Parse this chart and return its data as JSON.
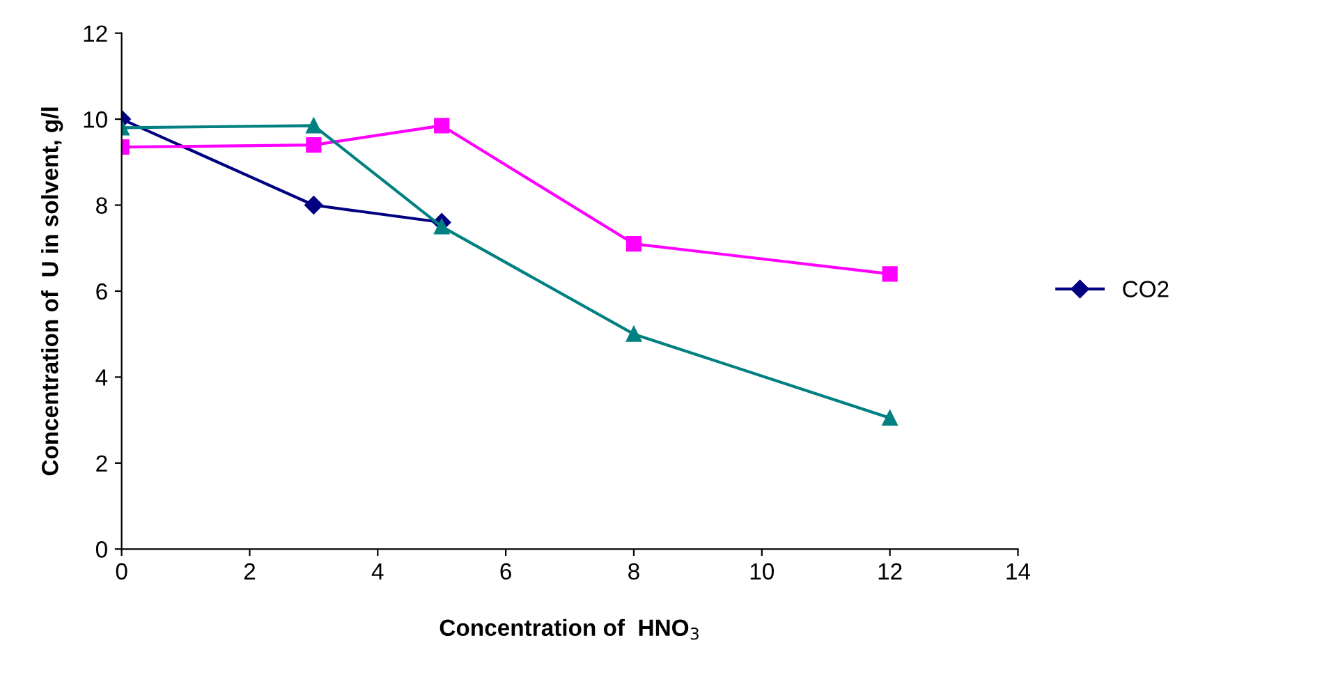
{
  "chart_data": {
    "type": "line",
    "xlabel": "Concentration of  HNO$_{3}$",
    "ylabel": "Concentration of  U in solvent, g/l",
    "xlim": [
      0,
      14
    ],
    "xticks": [
      0,
      2,
      4,
      6,
      8,
      10,
      12,
      14
    ],
    "ylim": [
      0,
      12
    ],
    "yticks": [
      0,
      2,
      4,
      6,
      8,
      10,
      12
    ],
    "grid": false,
    "legend": "right",
    "line_style": "solid",
    "series": [
      {
        "name": "CO2",
        "color": "#000080",
        "marker": "diamond",
        "x": [
          0,
          3,
          5
        ],
        "values": [
          10,
          8,
          7.6
        ]
      },
      {
        "color": "#ff00ff",
        "marker": "square",
        "x": [
          0,
          3,
          5,
          8,
          12
        ],
        "values": [
          9.35,
          9.4,
          9.85,
          7.1,
          6.4
        ]
      },
      {
        "color": "#008080",
        "marker": "triangle",
        "x": [
          0,
          3,
          5,
          8,
          12
        ],
        "values": [
          9.8,
          9.85,
          7.5,
          5,
          3.05
        ]
      }
    ]
  }
}
